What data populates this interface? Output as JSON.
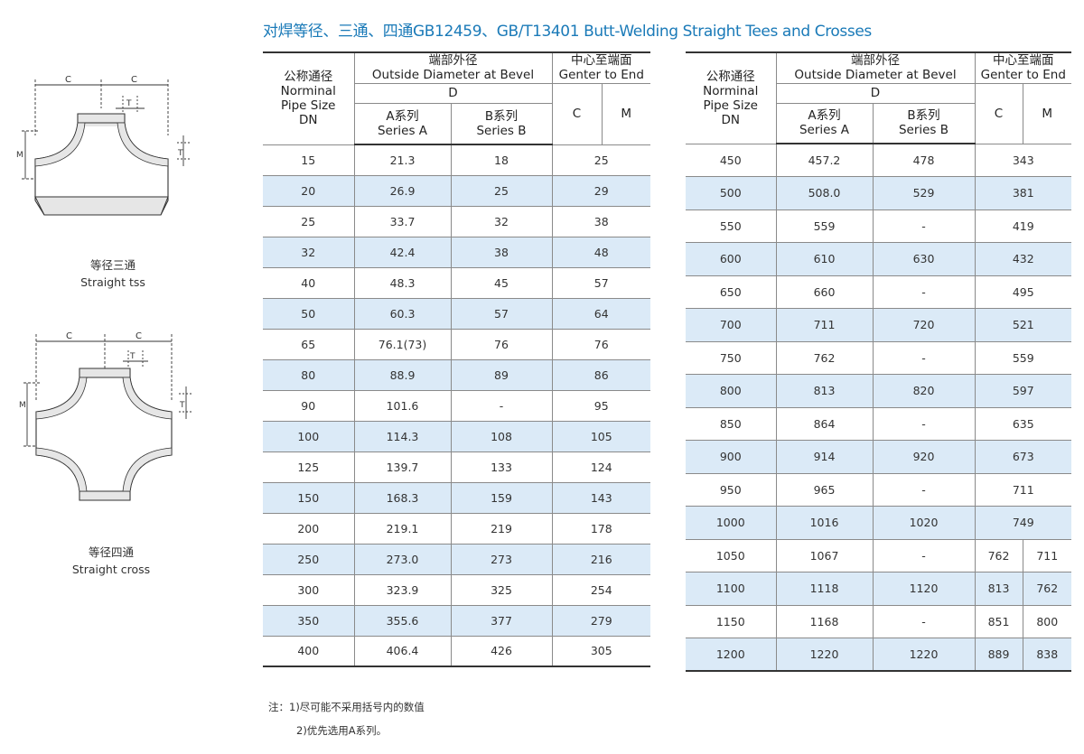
{
  "title": "对焊等径、三通、四通GB12459、GB/T13401 Butt-Welding Straight Tees and Crosses",
  "figures": {
    "tee": {
      "label_c": "C",
      "label_t": "T",
      "label_m": "M",
      "caption_cn": "等径三通",
      "caption_en": "Straight tss"
    },
    "cross": {
      "label_c": "C",
      "label_t": "T",
      "label_m": "M",
      "caption_cn": "等径四通",
      "caption_en": "Straight cross"
    }
  },
  "table_header": {
    "dn_cn": "公称通径",
    "dn_en1": "Norminal",
    "dn_en2": "Pipe Size",
    "dn_en3": "DN",
    "od_cn": "端部外径",
    "od_en": "Outside Diameter at Bevel",
    "od_symbol": "D",
    "series_a_cn": "A系列",
    "series_a_en": "Series A",
    "series_b_cn": "B系列",
    "series_b_en": "Series B",
    "cte_cn": "中心至端面",
    "cte_en": "Genter to End",
    "col_c": "C",
    "col_m": "M"
  },
  "rows_left": [
    {
      "dn": "15",
      "a": "21.3",
      "b": "18",
      "c": "25"
    },
    {
      "dn": "20",
      "a": "26.9",
      "b": "25",
      "c": "29"
    },
    {
      "dn": "25",
      "a": "33.7",
      "b": "32",
      "c": "38"
    },
    {
      "dn": "32",
      "a": "42.4",
      "b": "38",
      "c": "48"
    },
    {
      "dn": "40",
      "a": "48.3",
      "b": "45",
      "c": "57"
    },
    {
      "dn": "50",
      "a": "60.3",
      "b": "57",
      "c": "64"
    },
    {
      "dn": "65",
      "a": "76.1(73)",
      "b": "76",
      "c": "76"
    },
    {
      "dn": "80",
      "a": "88.9",
      "b": "89",
      "c": "86"
    },
    {
      "dn": "90",
      "a": "101.6",
      "b": "-",
      "c": "95"
    },
    {
      "dn": "100",
      "a": "114.3",
      "b": "108",
      "c": "105"
    },
    {
      "dn": "125",
      "a": "139.7",
      "b": "133",
      "c": "124"
    },
    {
      "dn": "150",
      "a": "168.3",
      "b": "159",
      "c": "143"
    },
    {
      "dn": "200",
      "a": "219.1",
      "b": "219",
      "c": "178"
    },
    {
      "dn": "250",
      "a": "273.0",
      "b": "273",
      "c": "216"
    },
    {
      "dn": "300",
      "a": "323.9",
      "b": "325",
      "c": "254"
    },
    {
      "dn": "350",
      "a": "355.6",
      "b": "377",
      "c": "279"
    },
    {
      "dn": "400",
      "a": "406.4",
      "b": "426",
      "c": "305"
    }
  ],
  "rows_right": [
    {
      "dn": "450",
      "a": "457.2",
      "b": "478",
      "c": "343"
    },
    {
      "dn": "500",
      "a": "508.0",
      "b": "529",
      "c": "381"
    },
    {
      "dn": "550",
      "a": "559",
      "b": "-",
      "c": "419"
    },
    {
      "dn": "600",
      "a": "610",
      "b": "630",
      "c": "432"
    },
    {
      "dn": "650",
      "a": "660",
      "b": "-",
      "c": "495"
    },
    {
      "dn": "700",
      "a": "711",
      "b": "720",
      "c": "521"
    },
    {
      "dn": "750",
      "a": "762",
      "b": "-",
      "c": "559"
    },
    {
      "dn": "800",
      "a": "813",
      "b": "820",
      "c": "597"
    },
    {
      "dn": "850",
      "a": "864",
      "b": "-",
      "c": "635"
    },
    {
      "dn": "900",
      "a": "914",
      "b": "920",
      "c": "673"
    },
    {
      "dn": "950",
      "a": "965",
      "b": "-",
      "c": "711"
    },
    {
      "dn": "1000",
      "a": "1016",
      "b": "1020",
      "c": "749"
    },
    {
      "dn": "1050",
      "a": "1067",
      "b": "-",
      "c": "762",
      "m": "711"
    },
    {
      "dn": "1100",
      "a": "1118",
      "b": "1120",
      "c": "813",
      "m": "762"
    },
    {
      "dn": "1150",
      "a": "1168",
      "b": "-",
      "c": "851",
      "m": "800"
    },
    {
      "dn": "1200",
      "a": "1220",
      "b": "1220",
      "c": "889",
      "m": "838"
    }
  ],
  "notes": {
    "prefix": "注：",
    "line1": "1)尽可能不采用括号内的数值",
    "line2": "2)优先选用A系列。"
  },
  "colors": {
    "accent": "#1a7ab8",
    "row_shade": "#dbeaf7",
    "shape_fill": "#e6e6e6"
  }
}
